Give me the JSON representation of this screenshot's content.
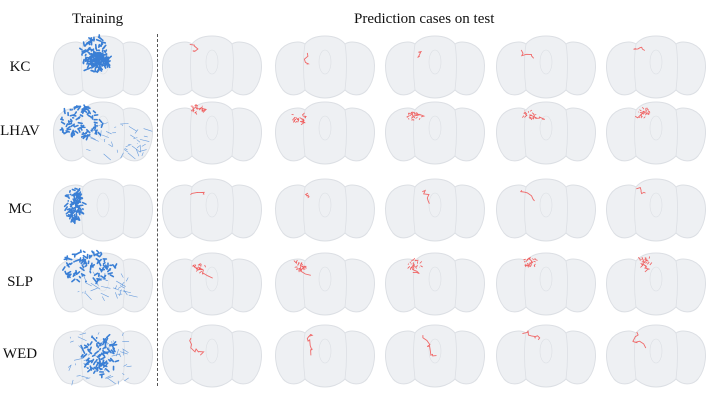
{
  "headers": {
    "training": "Training",
    "prediction": "Prediction cases on test"
  },
  "rows": [
    {
      "label": "KC"
    },
    {
      "label": "LHAV"
    },
    {
      "label": "MC"
    },
    {
      "label": "SLP"
    },
    {
      "label": "WED"
    }
  ],
  "prediction_cases_per_row": 5,
  "colors": {
    "brain": "#eef0f3",
    "brain_edge": "#dcdfe4",
    "training": "#3a7fd5",
    "prediction": "#f05a5a",
    "divider": "#555555"
  }
}
